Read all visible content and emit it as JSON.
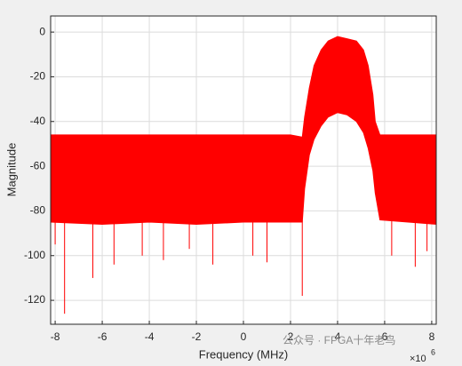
{
  "chart_data": {
    "type": "band",
    "x_label": "Frequency (MHz)",
    "y_label": "Magnitude",
    "x_multiplier": "×10",
    "x_exponent": "6",
    "watermark": "公众号 · FPGA十年老鸟",
    "color": "#ff0000",
    "x": [
      -8.192,
      -6,
      -4,
      -2,
      0,
      2,
      2.5,
      2.6,
      2.8,
      3.0,
      3.3,
      3.6,
      4.0,
      4.4,
      4.8,
      5.1,
      5.3,
      5.5,
      5.6,
      5.8,
      7,
      8.192
    ],
    "upper": [
      -46,
      -46,
      -46,
      -46,
      -46,
      -46,
      -47,
      -38,
      -25,
      -15,
      -8,
      -4,
      -2,
      -3,
      -4,
      -8,
      -15,
      -28,
      -40,
      -46,
      -46,
      -46
    ],
    "lower": [
      -85,
      -86,
      -85,
      -86,
      -85,
      -85,
      -85,
      -70,
      -55,
      -48,
      -42,
      -38,
      -36,
      -37,
      -40,
      -45,
      -52,
      -62,
      -72,
      -84,
      -85,
      -86
    ],
    "spikes": {
      "x": [
        -8.0,
        -7.6,
        -6.4,
        -5.5,
        -4.3,
        -3.4,
        -2.3,
        -1.3,
        0.4,
        1.0,
        2.5,
        6.3,
        7.3,
        7.8
      ],
      "values": [
        -95,
        -126,
        -110,
        -104,
        -100,
        -102,
        -97,
        -104,
        -100,
        -103,
        -118,
        -100,
        -105,
        -98
      ]
    },
    "xlim": [
      -8.192,
      8.192
    ],
    "ylim": [
      -130.7,
      7.2
    ],
    "xticks": [
      -8,
      -6,
      -4,
      -2,
      0,
      2,
      4,
      6,
      8
    ],
    "yticks": [
      -120,
      -100,
      -80,
      -60,
      -40,
      -20,
      0
    ],
    "grid": true
  }
}
